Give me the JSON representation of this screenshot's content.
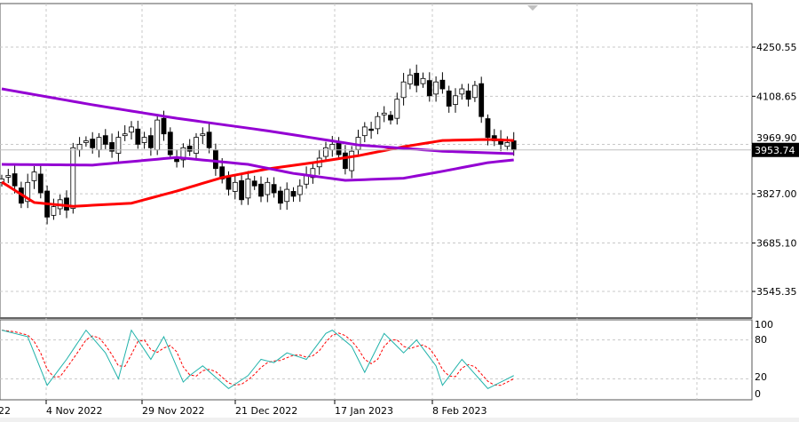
{
  "chart_data": {
    "type": "candlestick",
    "price_axis": {
      "ticks": [
        "4250.55",
        "4108.65",
        "3969.90",
        "3827.00",
        "3685.10",
        "3545.35"
      ],
      "tick_values": [
        4250.55,
        4108.65,
        3969.9,
        3827.0,
        3685.1,
        3545.35
      ]
    },
    "current_price": "3953.74",
    "time_axis": {
      "labels": [
        "22",
        "4 Nov 2022",
        "29 Nov 2022",
        "21 Dec 2022",
        "17 Jan 2023",
        "8 Feb 2023"
      ],
      "label_candle_index": [
        0,
        7,
        22,
        37,
        52,
        67
      ]
    },
    "closes": [
      3870,
      3880,
      3850,
      3800,
      3860,
      3890,
      3830,
      3760,
      3790,
      3810,
      3780,
      3960,
      3970,
      3980,
      3960,
      3990,
      3970,
      3950,
      3990,
      4000,
      4020,
      3970,
      3990,
      3960,
      4040,
      4000,
      3940,
      3920,
      3960,
      3950,
      3990,
      4000,
      3960,
      3900,
      3870,
      3840,
      3860,
      3810,
      3870,
      3850,
      3820,
      3860,
      3830,
      3800,
      3840,
      3820,
      3850,
      3880,
      3900,
      3930,
      3960,
      3970,
      3940,
      3900,
      3950,
      3990,
      4020,
      4010,
      4050,
      4060,
      4040,
      4100,
      4150,
      4170,
      4140,
      4160,
      4110,
      4150,
      4130,
      4080,
      4110,
      4130,
      4100,
      4140,
      4050,
      3990,
      3980,
      3970,
      3975,
      3953.74
    ],
    "moving_averages": [
      {
        "name": "MA red",
        "color": "#ff0000",
        "points": [
          [
            0,
            3861
          ],
          [
            5,
            3802
          ],
          [
            11,
            3791
          ],
          [
            20,
            3800
          ],
          [
            27,
            3835
          ],
          [
            34,
            3874
          ],
          [
            41,
            3899
          ],
          [
            48,
            3917
          ],
          [
            55,
            3937
          ],
          [
            62,
            3963
          ],
          [
            68,
            3981
          ],
          [
            75,
            3984
          ],
          [
            79,
            3981
          ]
        ]
      },
      {
        "name": "MA purple upper",
        "color": "#9400d3",
        "points": [
          [
            0,
            4130
          ],
          [
            14,
            4084
          ],
          [
            27,
            4045
          ],
          [
            41,
            4009
          ],
          [
            55,
            3968
          ],
          [
            68,
            3950
          ],
          [
            79,
            3943
          ]
        ]
      },
      {
        "name": "MA purple lower",
        "color": "#9400d3",
        "points": [
          [
            0,
            3912
          ],
          [
            14,
            3910
          ],
          [
            27,
            3932
          ],
          [
            38,
            3912
          ],
          [
            45,
            3886
          ],
          [
            53,
            3866
          ],
          [
            62,
            3872
          ],
          [
            68,
            3892
          ],
          [
            75,
            3917
          ],
          [
            79,
            3925
          ]
        ]
      }
    ],
    "stochastic": {
      "axis_ticks": [
        "100",
        "80",
        "20",
        "0"
      ],
      "axis_values": [
        100,
        80,
        20,
        0
      ],
      "ylim": [
        0,
        100
      ],
      "main_color": "#20b2aa",
      "signal_color": "#ff0000",
      "main_points": [
        [
          0,
          95
        ],
        [
          4,
          85
        ],
        [
          7,
          10
        ],
        [
          10,
          50
        ],
        [
          13,
          95
        ],
        [
          16,
          60
        ],
        [
          18,
          20
        ],
        [
          20,
          95
        ],
        [
          23,
          50
        ],
        [
          25,
          85
        ],
        [
          28,
          15
        ],
        [
          29,
          25
        ],
        [
          31,
          40
        ],
        [
          35,
          5
        ],
        [
          38,
          25
        ],
        [
          40,
          50
        ],
        [
          42,
          45
        ],
        [
          44,
          60
        ],
        [
          47,
          50
        ],
        [
          50,
          90
        ],
        [
          51,
          95
        ],
        [
          54,
          70
        ],
        [
          56,
          30
        ],
        [
          59,
          90
        ],
        [
          62,
          60
        ],
        [
          64,
          80
        ],
        [
          67,
          40
        ],
        [
          68,
          10
        ],
        [
          71,
          50
        ],
        [
          75,
          5
        ],
        [
          77,
          15
        ],
        [
          79,
          25
        ]
      ]
    }
  }
}
